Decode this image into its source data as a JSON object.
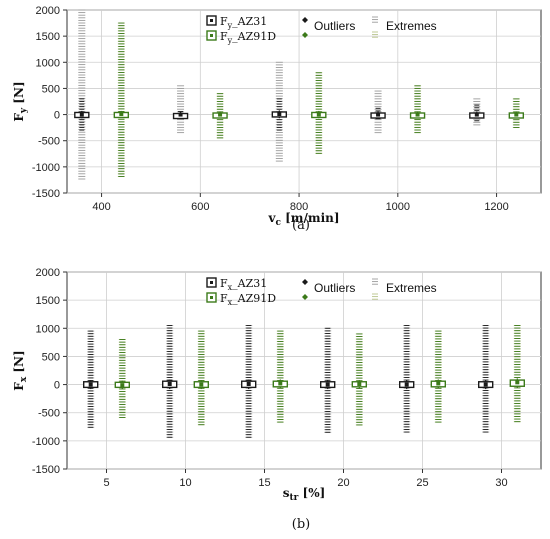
{
  "colors": {
    "az31": "#1a1a1a",
    "az91d": "#3c7a1a",
    "extreme_az31": "#9a9a9a",
    "extreme_az91d": "#b8c48a",
    "grid": "#cfcfcf"
  },
  "chart_data": [
    {
      "type": "box",
      "panel_label": "(a)",
      "xlabel": "v",
      "xlabel_sub": "c",
      "xlabel_unit": " [m/min]",
      "ylabel": "F",
      "ylabel_sub": "y",
      "ylabel_unit": " [N]",
      "xlim": [
        330,
        1290
      ],
      "ylim": [
        -1500,
        2000
      ],
      "xticks": [
        400,
        600,
        800,
        1000,
        1200
      ],
      "yticks": [
        -1500,
        -1000,
        -500,
        0,
        500,
        1000,
        1500,
        2000
      ],
      "grid": true,
      "legend": {
        "placement": "top-center",
        "series": [
          "Fy_AZ31",
          "Fy_AZ91D"
        ],
        "markers": [
          "Outliers",
          "Extremes"
        ]
      },
      "series": [
        {
          "name": "Fy_AZ31",
          "x": [
            360,
            560,
            760,
            960,
            1160
          ],
          "median": [
            0,
            0,
            10,
            0,
            0
          ],
          "box": [
            [
              -40,
              40
            ],
            [
              -20,
              20
            ],
            [
              -40,
              50
            ],
            [
              -30,
              30
            ],
            [
              -30,
              30
            ]
          ],
          "outliers": [
            [
              -300,
              300
            ],
            [
              -50,
              60
            ],
            [
              -300,
              300
            ],
            [
              -100,
              120
            ],
            [
              -150,
              180
            ]
          ],
          "extremes": [
            [
              -1250,
              2000
            ],
            [
              -350,
              550
            ],
            [
              -900,
              1000
            ],
            [
              -350,
              450
            ],
            [
              -200,
              300
            ]
          ]
        },
        {
          "name": "Fy_AZ91D",
          "x": [
            440,
            640,
            840,
            1040,
            1240
          ],
          "median": [
            10,
            0,
            0,
            0,
            0
          ],
          "box": [
            [
              -30,
              40
            ],
            [
              -30,
              30
            ],
            [
              -40,
              40
            ],
            [
              -30,
              30
            ],
            [
              -30,
              30
            ]
          ],
          "outliers": [
            [
              -1200,
              1750
            ],
            [
              -450,
              400
            ],
            [
              -750,
              800
            ],
            [
              -350,
              550
            ],
            [
              -250,
              300
            ]
          ],
          "extremes": [
            [
              -1200,
              1750
            ],
            [
              -450,
              400
            ],
            [
              -750,
              800
            ],
            [
              -350,
              550
            ],
            [
              -250,
              300
            ]
          ]
        }
      ]
    },
    {
      "type": "box",
      "panel_label": "(b)",
      "xlabel": "s",
      "xlabel_sub": "tr",
      "xlabel_unit": " [%]",
      "ylabel": "F",
      "ylabel_sub": "x",
      "ylabel_unit": " [N]",
      "xlim": [
        2.5,
        32.5
      ],
      "ylim": [
        -1500,
        2000
      ],
      "xticks": [
        5,
        10,
        15,
        20,
        25,
        30
      ],
      "yticks": [
        -1500,
        -1000,
        -500,
        0,
        500,
        1000,
        1500,
        2000
      ],
      "grid": true,
      "legend": {
        "placement": "top-center",
        "series": [
          "Fx_AZ31",
          "Fx_AZ91D"
        ],
        "markers": [
          "Outliers",
          "Extremes"
        ]
      },
      "series": [
        {
          "name": "Fx_AZ31",
          "x": [
            4,
            9,
            14,
            19,
            24,
            29
          ],
          "median": [
            0,
            10,
            10,
            0,
            0,
            0
          ],
          "box": [
            [
              -50,
              50
            ],
            [
              -50,
              60
            ],
            [
              -50,
              60
            ],
            [
              -50,
              50
            ],
            [
              -50,
              50
            ],
            [
              -50,
              50
            ]
          ],
          "outliers": [
            [
              -800,
              950
            ],
            [
              -950,
              1050
            ],
            [
              -950,
              1050
            ],
            [
              -850,
              1000
            ],
            [
              -850,
              1050
            ],
            [
              -850,
              1050
            ]
          ],
          "extremes": [
            [
              -800,
              950
            ],
            [
              -950,
              1050
            ],
            [
              -950,
              1050
            ],
            [
              -850,
              1000
            ],
            [
              -850,
              1050
            ],
            [
              -850,
              1050
            ]
          ]
        },
        {
          "name": "Fx_AZ91D",
          "x": [
            6,
            11,
            16,
            21,
            26,
            31
          ],
          "median": [
            -10,
            0,
            20,
            10,
            20,
            40
          ],
          "box": [
            [
              -50,
              40
            ],
            [
              -50,
              50
            ],
            [
              -40,
              60
            ],
            [
              -40,
              50
            ],
            [
              -40,
              60
            ],
            [
              -30,
              80
            ]
          ],
          "outliers": [
            [
              -600,
              800
            ],
            [
              -750,
              950
            ],
            [
              -700,
              950
            ],
            [
              -750,
              900
            ],
            [
              -700,
              950
            ],
            [
              -700,
              1050
            ]
          ],
          "extremes": [
            [
              -600,
              800
            ],
            [
              -750,
              950
            ],
            [
              -700,
              950
            ],
            [
              -750,
              900
            ],
            [
              -700,
              950
            ],
            [
              -700,
              1050
            ]
          ]
        }
      ]
    }
  ]
}
